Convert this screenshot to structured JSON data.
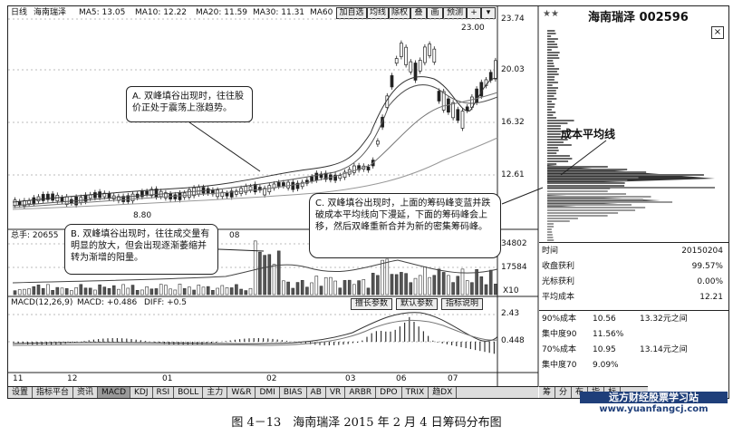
{
  "header": {
    "period": "日线",
    "stock_name": "海南瑞泽",
    "ma5": "MA5: 13.05",
    "ma10": "MA10: 12.22",
    "ma20": "MA20: 11.59",
    "ma30": "MA30: 11.31",
    "ma60": "MA60",
    "buttons": [
      "加自选",
      "均线",
      "除权",
      "叠",
      "画",
      "预测"
    ]
  },
  "price_axis": [
    "23.74",
    "20.03",
    "16.32",
    "12.61"
  ],
  "price_marks": {
    "high": "23.00",
    "low": "8.80"
  },
  "volume": {
    "label": "总手: 20655",
    "axis": [
      "34802",
      "17584"
    ],
    "unit": "X10",
    "trailing": "08"
  },
  "panel_buttons": [
    "擅长参数",
    "默认参数",
    "指标说明"
  ],
  "macd": {
    "label": "MACD(12,26,9)",
    "value": "MACD: +0.486",
    "diff": "DIFF: +0.5",
    "axis": [
      "2.43",
      "0.448"
    ]
  },
  "dates": [
    "11",
    "12",
    "01",
    "02",
    "03",
    "06",
    "07"
  ],
  "bottom_tabs": [
    "设置",
    "指标平台",
    "资讯",
    "MACD",
    "KDJ",
    "RSI",
    "BOLL",
    "主力",
    "W&R",
    "DMI",
    "BIAS",
    "AB",
    "VR",
    "ARBR",
    "DPO",
    "TRIX",
    "趋DX"
  ],
  "right_panel": {
    "stars": "★★",
    "title": "海南瑞泽 002596",
    "cost_line_label": "成本平均线",
    "rows": [
      {
        "label": "时间",
        "value": "20150204"
      },
      {
        "label": "收盘获利",
        "value": "99.57%"
      },
      {
        "label": "光标获利",
        "value": "0.00%"
      },
      {
        "label": "平均成本",
        "value": "12.21"
      }
    ],
    "bands": [
      {
        "label": "90%成本",
        "low": "10.56",
        "high": "13.32元之间"
      },
      {
        "label": "集中度90",
        "value": "11.56%"
      },
      {
        "label": "70%成本",
        "low": "10.95",
        "high": "13.14元之间"
      },
      {
        "label": "集中度70",
        "value": "9.09%"
      }
    ],
    "bottom_tabs": [
      "筹",
      "分",
      "布",
      "指",
      "标"
    ]
  },
  "callouts": {
    "a": "A. 双峰填谷出现时，往往股价正处于震荡上涨趋势。",
    "b": "B. 双峰填谷出现时，往往成交量有明显的放大，但会出现逐渐萎缩并转为渐增的阳量。",
    "c": "C. 双峰填谷出现时，上面的筹码峰变蓝并跌破成本平均线向下漫延，下面的筹码峰会上移，然后双峰重新合并为新的密集筹码峰。"
  },
  "watermark": {
    "line1": "远方财经股票学习站",
    "line2": "www.yuanfangcj.com"
  },
  "caption": "图 4－13　海南瑞泽 2015 年 2 月 4 日筹码分布图",
  "colors": {
    "border": "#222222",
    "callout_border": "#222222",
    "watermark_bg": "#1f3f7a"
  }
}
